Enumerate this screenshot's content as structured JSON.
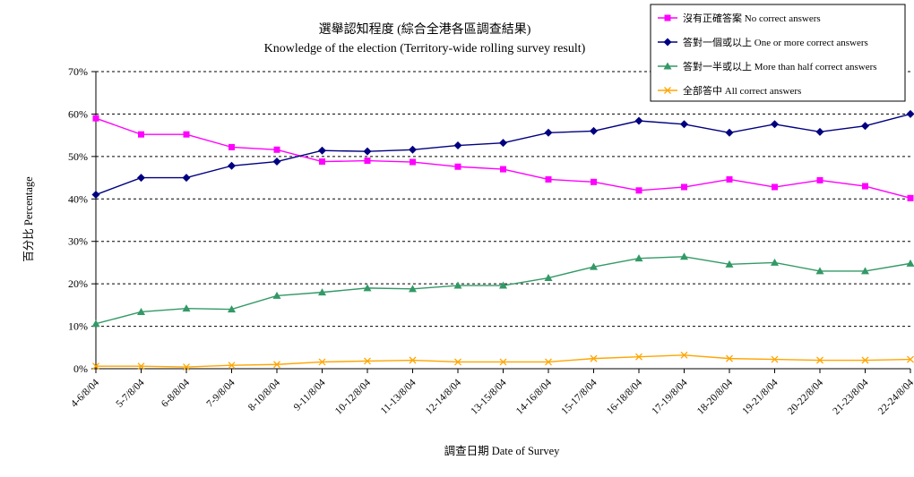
{
  "chart_data": {
    "type": "line",
    "title": "選舉認知程度 (綜合全港各區調查結果)",
    "subtitle": "Knowledge of the election (Territory-wide rolling survey result)",
    "xlabel": "調查日期 Date of Survey",
    "ylabel": "百分比 Percentage",
    "ylim": [
      0,
      70
    ],
    "yticks": [
      "0%",
      "10%",
      "20%",
      "30%",
      "40%",
      "50%",
      "60%",
      "70%"
    ],
    "grid": "horizontal dashed",
    "legend_position": "top-right",
    "categories": [
      "4-6/8/04",
      "5-7/8/04",
      "6-8/8/04",
      "7-9/8/04",
      "8-10/8/04",
      "9-11/8/04",
      "10-12/8/04",
      "11-13/8/04",
      "12-14/8/04",
      "13-15/8/04",
      "14-16/8/04",
      "15-17/8/04",
      "16-18/8/04",
      "17-19/8/04",
      "18-20/8/04",
      "19-21/8/04",
      "20-22/8/04",
      "21-23/8/04",
      "22-24/8/04"
    ],
    "series": [
      {
        "name": "沒有正確答案 No correct answers",
        "color": "#ff00ff",
        "marker": "square",
        "values": [
          59,
          55.2,
          55.2,
          52.2,
          51.6,
          48.8,
          49,
          48.7,
          47.6,
          47,
          44.6,
          44,
          42,
          42.8,
          44.6,
          42.8,
          44.4,
          43,
          40.2
        ]
      },
      {
        "name": "答對一個或以上 One or more correct answers",
        "color": "#000080",
        "marker": "diamond",
        "values": [
          41,
          45,
          45,
          47.8,
          48.8,
          51.4,
          51.2,
          51.6,
          52.6,
          53.2,
          55.6,
          56,
          58.4,
          57.6,
          55.6,
          57.6,
          55.8,
          57.2,
          60
        ]
      },
      {
        "name": "答對一半或以上 More than half correct answers",
        "color": "#339966",
        "marker": "triangle",
        "values": [
          10.6,
          13.4,
          14.2,
          14,
          17.2,
          18,
          19,
          18.8,
          19.6,
          19.6,
          21.4,
          24,
          26,
          26.4,
          24.6,
          25,
          23,
          23,
          24.8
        ]
      },
      {
        "name": "全部答中 All correct answers",
        "color": "#ffa500",
        "marker": "x",
        "values": [
          0.6,
          0.6,
          0.4,
          0.8,
          1,
          1.6,
          1.8,
          2,
          1.6,
          1.6,
          1.6,
          2.4,
          2.8,
          3.2,
          2.4,
          2.2,
          2,
          2,
          2.2
        ]
      }
    ]
  }
}
